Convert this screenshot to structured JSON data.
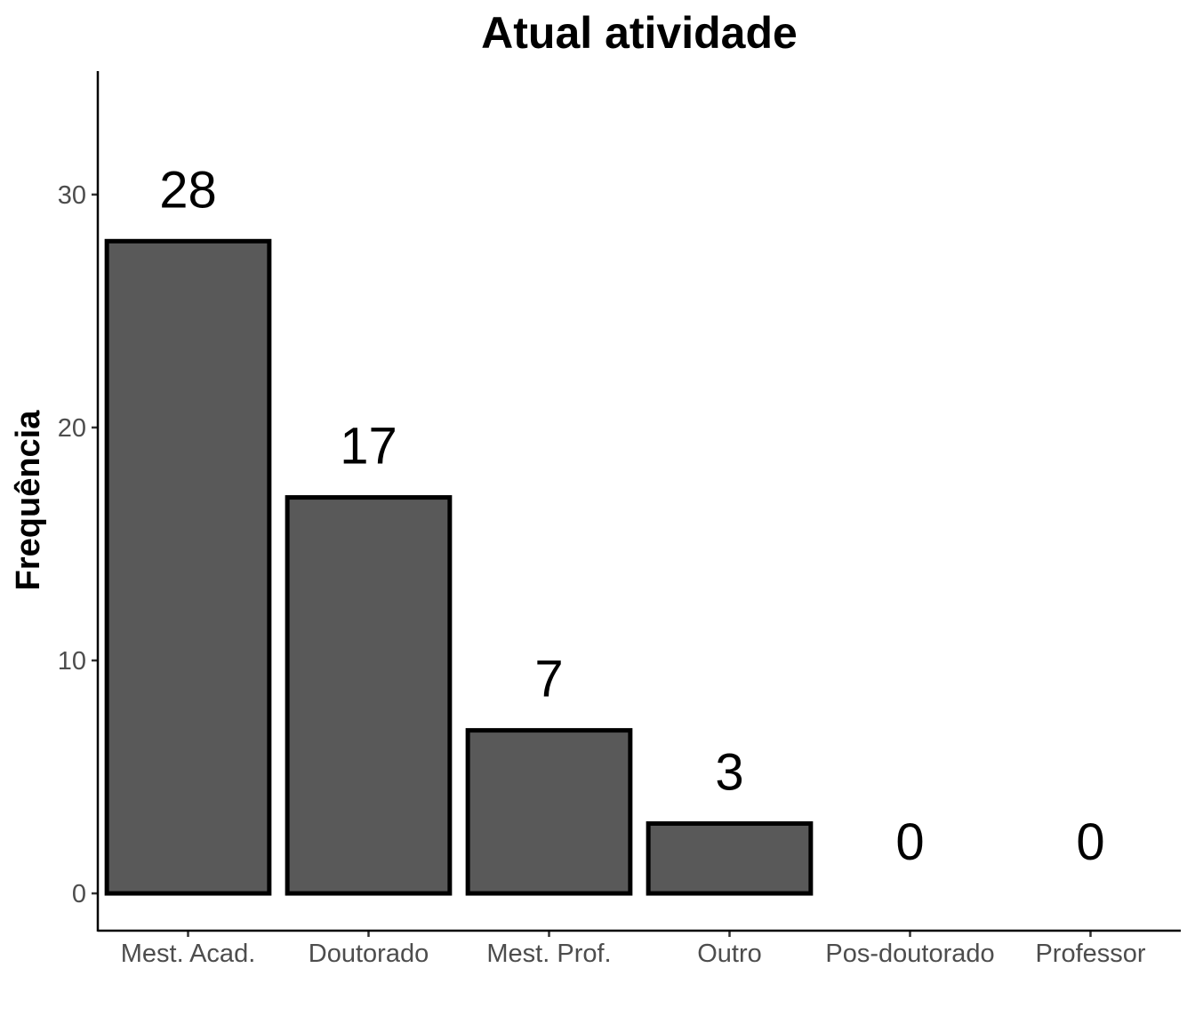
{
  "chart_data": {
    "type": "bar",
    "title": "Atual atividade",
    "xlabel": "",
    "ylabel": "Frequência",
    "categories": [
      "Mest. Acad.",
      "Doutorado",
      "Mest. Prof.",
      "Outro",
      "Pos-doutorado",
      "Professor"
    ],
    "values": [
      28,
      17,
      7,
      3,
      0,
      0
    ],
    "data_labels": [
      "28",
      "17",
      "7",
      "3",
      "0",
      "0"
    ],
    "ylim": [
      -1.6,
      35.3
    ],
    "yticks": [
      0,
      10,
      20,
      30
    ],
    "grid": false,
    "legend": "none",
    "bar_fill": "#595959",
    "bar_outline": "#000000"
  }
}
